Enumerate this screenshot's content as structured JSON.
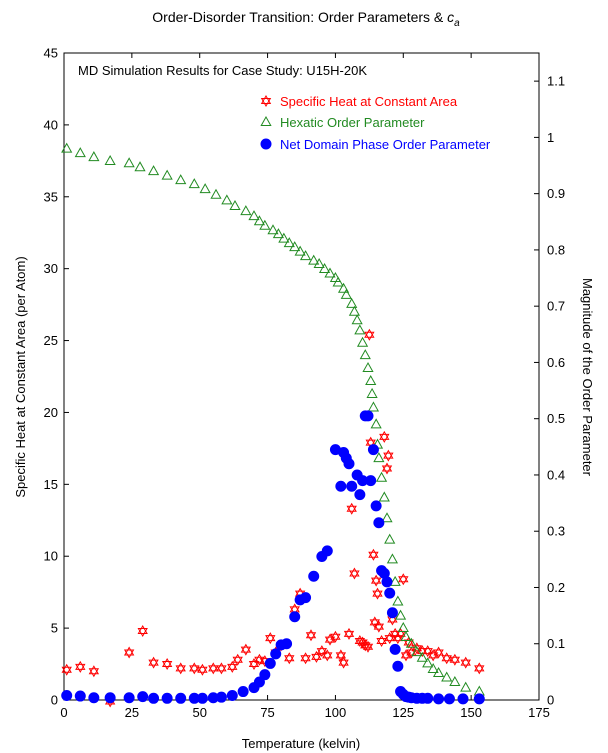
{
  "chart_data": {
    "type": "scatter",
    "title": "Order-Disorder Transition: Order Parameters & ",
    "title_math": "c",
    "title_math_sub": "a",
    "annotation": "MD Simulation Results for Case Study: U15H-20K",
    "xlabel": "Temperature (kelvin)",
    "ylabel_left": "Specific Heat at Constant Area (per Atom)",
    "ylabel_right": "Magnitude of the Order Parameter",
    "xlim": [
      0,
      175
    ],
    "ylim_left": [
      0,
      45
    ],
    "ylim_right": [
      0,
      1.15
    ],
    "x_ticks": [
      "0",
      "25",
      "50",
      "75",
      "100",
      "125",
      "150",
      "175"
    ],
    "y_left_ticks": [
      "0",
      "5",
      "10",
      "15",
      "20",
      "25",
      "30",
      "35",
      "40",
      "45"
    ],
    "y_right_ticks": [
      "0",
      "0.1",
      "0.2",
      "0.3",
      "0.4",
      "0.5",
      "0.6",
      "0.7",
      "0.8",
      "0.9",
      "1",
      "1.1"
    ],
    "grid": false,
    "legend_position": "top-right",
    "series": [
      {
        "name": "Specific Heat at Constant Area",
        "axis": "left",
        "marker": "star",
        "color": "#ff0000",
        "points": [
          [
            1,
            2.1
          ],
          [
            6,
            2.3
          ],
          [
            11,
            2.0
          ],
          [
            17,
            -0.1
          ],
          [
            24,
            3.3
          ],
          [
            29,
            4.8
          ],
          [
            33,
            2.6
          ],
          [
            38,
            2.5
          ],
          [
            43,
            2.2
          ],
          [
            48,
            2.2
          ],
          [
            51,
            2.1
          ],
          [
            55,
            2.2
          ],
          [
            58,
            2.2
          ],
          [
            62,
            2.3
          ],
          [
            64,
            2.8
          ],
          [
            67,
            3.5
          ],
          [
            70,
            2.5
          ],
          [
            72,
            2.8
          ],
          [
            74,
            2.7
          ],
          [
            76,
            4.3
          ],
          [
            78,
            3.3
          ],
          [
            80,
            3.8
          ],
          [
            83,
            2.9
          ],
          [
            85,
            6.3
          ],
          [
            87,
            7.4
          ],
          [
            89,
            2.9
          ],
          [
            91,
            4.5
          ],
          [
            93,
            3.0
          ],
          [
            95,
            3.4
          ],
          [
            97,
            3.1
          ],
          [
            98,
            4.2
          ],
          [
            100,
            4.4
          ],
          [
            102,
            3.1
          ],
          [
            103,
            2.6
          ],
          [
            105,
            4.6
          ],
          [
            106,
            13.3
          ],
          [
            107,
            8.8
          ],
          [
            109,
            4.1
          ],
          [
            110,
            4.0
          ],
          [
            111,
            3.8
          ],
          [
            112,
            3.7
          ],
          [
            112.5,
            25.4
          ],
          [
            113,
            17.9
          ],
          [
            114,
            10.1
          ],
          [
            114.5,
            5.4
          ],
          [
            115,
            8.3
          ],
          [
            115.5,
            7.4
          ],
          [
            116,
            5.1
          ],
          [
            117,
            4.1
          ],
          [
            118,
            18.3
          ],
          [
            119,
            16.1
          ],
          [
            119.5,
            17.0
          ],
          [
            120,
            4.3
          ],
          [
            121,
            5.6
          ],
          [
            122,
            4.6
          ],
          [
            123,
            4.3
          ],
          [
            124,
            4.6
          ],
          [
            125,
            8.4
          ],
          [
            126,
            3.1
          ],
          [
            127,
            4.0
          ],
          [
            128,
            3.3
          ],
          [
            130,
            3.6
          ],
          [
            132,
            3.4
          ],
          [
            134,
            3.4
          ],
          [
            136,
            3.1
          ],
          [
            138,
            3.3
          ],
          [
            141,
            2.9
          ],
          [
            144,
            2.8
          ],
          [
            148,
            2.6
          ],
          [
            153,
            2.2
          ]
        ]
      },
      {
        "name": "Hexatic Order Parameter",
        "axis": "right",
        "marker": "triangle",
        "color": "#228b22",
        "points": [
          [
            1,
            0.98
          ],
          [
            6,
            0.972
          ],
          [
            11,
            0.965
          ],
          [
            17,
            0.958
          ],
          [
            24,
            0.954
          ],
          [
            28,
            0.947
          ],
          [
            33,
            0.94
          ],
          [
            38,
            0.932
          ],
          [
            43,
            0.924
          ],
          [
            48,
            0.917
          ],
          [
            52,
            0.908
          ],
          [
            56,
            0.898
          ],
          [
            60,
            0.888
          ],
          [
            63,
            0.878
          ],
          [
            67,
            0.869
          ],
          [
            70,
            0.86
          ],
          [
            72,
            0.851
          ],
          [
            74,
            0.843
          ],
          [
            77,
            0.835
          ],
          [
            79,
            0.828
          ],
          [
            81,
            0.82
          ],
          [
            83,
            0.812
          ],
          [
            85,
            0.805
          ],
          [
            87,
            0.797
          ],
          [
            89,
            0.789
          ],
          [
            92,
            0.781
          ],
          [
            94,
            0.775
          ],
          [
            96,
            0.766
          ],
          [
            98,
            0.758
          ],
          [
            100,
            0.75
          ],
          [
            101,
            0.742
          ],
          [
            103,
            0.731
          ],
          [
            104,
            0.72
          ],
          [
            106,
            0.704
          ],
          [
            107,
            0.69
          ],
          [
            108,
            0.675
          ],
          [
            109,
            0.657
          ],
          [
            110,
            0.635
          ],
          [
            111,
            0.613
          ],
          [
            112,
            0.59
          ],
          [
            113,
            0.567
          ],
          [
            113.5,
            0.544
          ],
          [
            114,
            0.52
          ],
          [
            115,
            0.49
          ],
          [
            115.5,
            0.454
          ],
          [
            116,
            0.43
          ],
          [
            117,
            0.395
          ],
          [
            118,
            0.36
          ],
          [
            119,
            0.323
          ],
          [
            120,
            0.285
          ],
          [
            121,
            0.25
          ],
          [
            122,
            0.21
          ],
          [
            123,
            0.175
          ],
          [
            124,
            0.15
          ],
          [
            125,
            0.128
          ],
          [
            126,
            0.112
          ],
          [
            128,
            0.1
          ],
          [
            130,
            0.085
          ],
          [
            132,
            0.075
          ],
          [
            134,
            0.065
          ],
          [
            136,
            0.055
          ],
          [
            138,
            0.048
          ],
          [
            141,
            0.04
          ],
          [
            144,
            0.032
          ],
          [
            148,
            0.022
          ],
          [
            153,
            0.015
          ]
        ]
      },
      {
        "name": "Net Domain Phase Order Parameter",
        "axis": "right",
        "marker": "circle",
        "color": "#0000ff",
        "points": [
          [
            1,
            0.008
          ],
          [
            6,
            0.007
          ],
          [
            11,
            0.004
          ],
          [
            17,
            0.004
          ],
          [
            24,
            0.004
          ],
          [
            29,
            0.006
          ],
          [
            33,
            0.003
          ],
          [
            38,
            0.003
          ],
          [
            43,
            0.003
          ],
          [
            48,
            0.003
          ],
          [
            51,
            0.003
          ],
          [
            55,
            0.004
          ],
          [
            58,
            0.005
          ],
          [
            62,
            0.008
          ],
          [
            66,
            0.015
          ],
          [
            70,
            0.022
          ],
          [
            72,
            0.032
          ],
          [
            74,
            0.045
          ],
          [
            76,
            0.065
          ],
          [
            78,
            0.082
          ],
          [
            80,
            0.098
          ],
          [
            82,
            0.1
          ],
          [
            85,
            0.148
          ],
          [
            87,
            0.178
          ],
          [
            89,
            0.182
          ],
          [
            92,
            0.22
          ],
          [
            95,
            0.255
          ],
          [
            97,
            0.265
          ],
          [
            100,
            0.445
          ],
          [
            102,
            0.38
          ],
          [
            103,
            0.44
          ],
          [
            104,
            0.43
          ],
          [
            105,
            0.42
          ],
          [
            106,
            0.38
          ],
          [
            108,
            0.4
          ],
          [
            109,
            0.365
          ],
          [
            110,
            0.39
          ],
          [
            111,
            0.505
          ],
          [
            112,
            0.505
          ],
          [
            113,
            0.39
          ],
          [
            114,
            0.445
          ],
          [
            115,
            0.345
          ],
          [
            116,
            0.315
          ],
          [
            117,
            0.23
          ],
          [
            118,
            0.225
          ],
          [
            119,
            0.21
          ],
          [
            120,
            0.19
          ],
          [
            121,
            0.155
          ],
          [
            122,
            0.09
          ],
          [
            123,
            0.06
          ],
          [
            124,
            0.015
          ],
          [
            125,
            0.01
          ],
          [
            126,
            0.006
          ],
          [
            127,
            0.005
          ],
          [
            128,
            0.004
          ],
          [
            130,
            0.003
          ],
          [
            132,
            0.003
          ],
          [
            134,
            0.003
          ],
          [
            138,
            0.002
          ],
          [
            142,
            0.002
          ],
          [
            147,
            0.002
          ],
          [
            153,
            0.002
          ]
        ]
      }
    ]
  }
}
